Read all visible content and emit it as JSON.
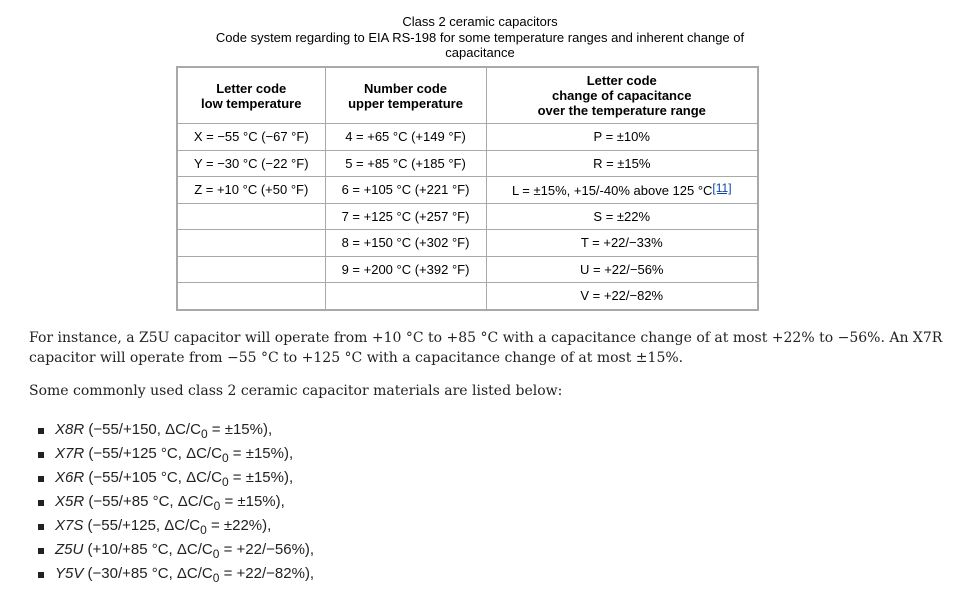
{
  "caption": {
    "title": "Class 2 ceramic capacitors",
    "subtitle": "Code system regarding to EIA RS-198 for some temperature ranges and inherent change of capacitance"
  },
  "table": {
    "headers": [
      [
        "Letter code",
        "low temperature"
      ],
      [
        "Number code",
        "upper temperature"
      ],
      [
        "Letter code",
        "change of capacitance",
        "over the temperature range"
      ]
    ],
    "rows": [
      [
        "X = −55 °C (−67 °F)",
        "4 = +65 °C (+149 °F)",
        "P = ±10%"
      ],
      [
        "Y = −30 °C (−22 °F)",
        "5 = +85 °C (+185 °F)",
        "R = ±15%"
      ],
      [
        "Z = +10 °C (+50 °F)",
        "6 = +105 °C (+221 °F)",
        "L = ±15%, +15/-40% above 125 °C"
      ],
      [
        null,
        "7 = +125 °C (+257 °F)",
        "S = ±22%"
      ],
      [
        null,
        "8 = +150 °C (+302 °F)",
        "T = +22/−33%"
      ],
      [
        null,
        "9 = +200 °C (+392 °F)",
        "U = +22/−56%"
      ],
      [
        null,
        null,
        "V = +22/−82%"
      ]
    ],
    "footnote": "[11]"
  },
  "paragraphs": [
    "For instance, a Z5U capacitor will operate from +10 °C to +85 °C with a capacitance change of at most +22% to −56%. An X7R capacitor will operate from −55 °C to +125 °C with a capacitance change of at most ±15%.",
    "Some commonly used class 2 ceramic capacitor materials are listed below:"
  ],
  "list": [
    {
      "name": "X8R",
      "before": " (−55/+150, ΔC/C",
      "sub": "0",
      "after": " = ±15%),"
    },
    {
      "name": "X7R",
      "before": " (−55/+125 °C, ΔC/C",
      "sub": "0",
      "after": " = ±15%),"
    },
    {
      "name": "X6R",
      "before": " (−55/+105 °C, ΔC/C",
      "sub": "0",
      "after": " = ±15%),"
    },
    {
      "name": "X5R",
      "before": " (−55/+85 °C, ΔC/C",
      "sub": "0",
      "after": " = ±15%),"
    },
    {
      "name": "X7S",
      "before": " (−55/+125, ΔC/C",
      "sub": "0",
      "after": " = ±22%),"
    },
    {
      "name": "Z5U",
      "before": " (+10/+85 °C, ΔC/C",
      "sub": "0",
      "after": " = +22/−56%),"
    },
    {
      "name": "Y5V",
      "before": " (−30/+85 °C, ΔC/C",
      "sub": "0",
      "after": " = +22/−82%),"
    }
  ]
}
